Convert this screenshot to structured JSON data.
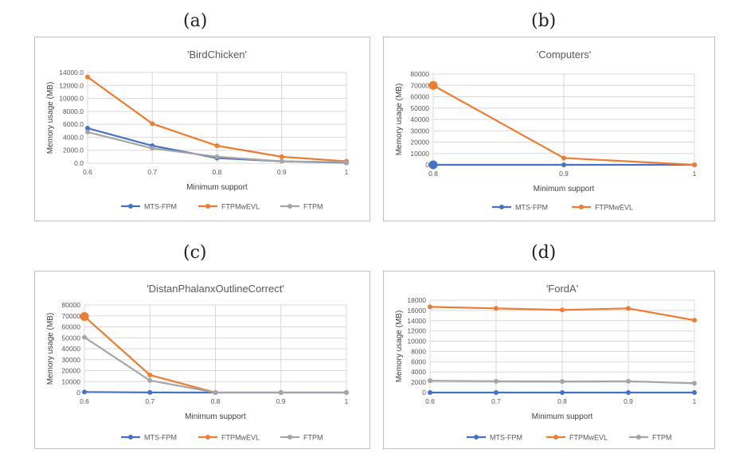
{
  "panels": [
    {
      "label": "(a)"
    },
    {
      "label": "(b)"
    },
    {
      "label": "(c)"
    },
    {
      "label": "(d)"
    }
  ],
  "colors": {
    "mts": "#4472c4",
    "ftpmwevl": "#ed7d31",
    "ftpm": "#a5a5a5",
    "grid": "#d9d9d9",
    "text": "#595959"
  },
  "chart_data": [
    {
      "type": "line",
      "title": "'BirdChicken'",
      "xlabel": "Minimum support",
      "ylabel": "Memory usage (MB)",
      "x": [
        0.6,
        0.7,
        0.8,
        0.9,
        1
      ],
      "x_ticks": [
        "0.6",
        "0.7",
        "0.8",
        "0.9",
        "1"
      ],
      "ylim": [
        0,
        14000
      ],
      "y_ticks": [
        "0.0",
        "2000.0",
        "4000.0",
        "6000.0",
        "8000.0",
        "10000.0",
        "12000.0",
        "14000.0"
      ],
      "grid": true,
      "legend_position": "bottom",
      "series": [
        {
          "name": "MTS-FPM",
          "color_key": "mts",
          "values": [
            5400,
            2700,
            800,
            300,
            80
          ]
        },
        {
          "name": "FTPMwEVL",
          "color_key": "ftpmwevl",
          "values": [
            13300,
            6100,
            2700,
            1000,
            300
          ]
        },
        {
          "name": "FTPM",
          "color_key": "ftpm",
          "values": [
            4800,
            2300,
            1000,
            300,
            150
          ]
        }
      ]
    },
    {
      "type": "line",
      "title": "'Computers'",
      "xlabel": "Minimum support",
      "ylabel": "Memory usage (MB)",
      "x": [
        0.8,
        0.9,
        1
      ],
      "x_ticks": [
        "0.8",
        "0.9",
        "1"
      ],
      "ylim": [
        0,
        80000
      ],
      "y_ticks": [
        "0",
        "10000",
        "20000",
        "30000",
        "40000",
        "50000",
        "60000",
        "70000",
        "80000"
      ],
      "grid": true,
      "legend_position": "bottom",
      "series": [
        {
          "name": "MTS-FPM",
          "color_key": "mts",
          "values": [
            0,
            0,
            0
          ],
          "big_first": true
        },
        {
          "name": "FTPMwEVL",
          "color_key": "ftpmwevl",
          "values": [
            70000,
            6000,
            0
          ],
          "big_first": true
        }
      ]
    },
    {
      "type": "line",
      "title": "'DistanPhalanxOutlineCorrect'",
      "xlabel": "Minimum support",
      "ylabel": "Memory usage (MB)",
      "x": [
        0.6,
        0.7,
        0.8,
        0.9,
        1
      ],
      "x_ticks": [
        "0.6",
        "0.7",
        "0.8",
        "0.9",
        "1"
      ],
      "ylim": [
        0,
        80000
      ],
      "y_ticks": [
        "0",
        "10000",
        "20000",
        "30000",
        "40000",
        "50000",
        "60000",
        "70000",
        "80000"
      ],
      "grid": true,
      "legend_position": "bottom",
      "series": [
        {
          "name": "MTS-FPM",
          "color_key": "mts",
          "values": [
            500,
            100,
            0,
            0,
            0
          ]
        },
        {
          "name": "FTPMwEVL",
          "color_key": "ftpmwevl",
          "values": [
            69500,
            16000,
            0,
            null,
            null
          ],
          "big_first": true
        },
        {
          "name": "FTPM",
          "color_key": "ftpm",
          "values": [
            50500,
            11000,
            0,
            0,
            0
          ]
        }
      ]
    },
    {
      "type": "line",
      "title": "'FordA'",
      "xlabel": "Minimum support",
      "ylabel": "Memory usage (MB)",
      "x": [
        0.6,
        0.7,
        0.8,
        0.9,
        1
      ],
      "x_ticks": [
        "0.6",
        "0.7",
        "0.8",
        "0.9",
        "1"
      ],
      "ylim": [
        0,
        18000
      ],
      "y_ticks": [
        "0",
        "2000",
        "4000",
        "6000",
        "8000",
        "10000",
        "12000",
        "14000",
        "16000",
        "18000"
      ],
      "grid": true,
      "legend_position": "bottom",
      "series": [
        {
          "name": "MTS-FPM",
          "color_key": "mts",
          "values": [
            0,
            0,
            0,
            0,
            0
          ]
        },
        {
          "name": "FTPMwEVL",
          "color_key": "ftpmwevl",
          "values": [
            16700,
            16400,
            16100,
            16400,
            14100
          ]
        },
        {
          "name": "FTPM",
          "color_key": "ftpm",
          "values": [
            2300,
            2200,
            2150,
            2200,
            1800
          ]
        }
      ]
    }
  ]
}
